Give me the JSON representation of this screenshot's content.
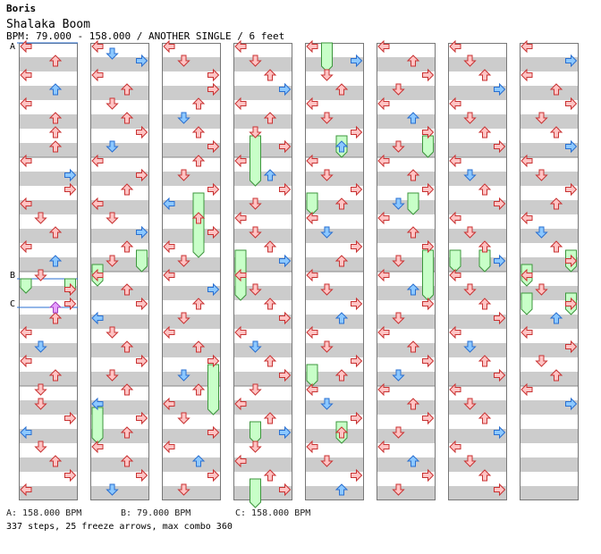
{
  "song": {
    "author": "Boris",
    "title": "Shalaka Boom",
    "info": "BPM: 79.000 - 158.000 / ANOTHER SINGLE / 6 feet"
  },
  "markers": [
    {
      "letter": "A",
      "column": 0,
      "beat": 0
    },
    {
      "letter": "B",
      "column": 0,
      "beat": 33
    },
    {
      "letter": "C",
      "column": 0,
      "beat": 37
    }
  ],
  "bpm_legend": [
    {
      "text": "A: 158.000 BPM"
    },
    {
      "text": "B: 79.000 BPM"
    },
    {
      "text": "C: 158.000 BPM"
    }
  ],
  "summary": "337 steps, 25 freeze arrows, max combo 360",
  "colors": {
    "red_fill": "#ffc4c4",
    "red_stroke": "#c83232",
    "blue_fill": "#8cc8ff",
    "blue_stroke": "#2a6fd0",
    "freeze_fill": "#c8ffc8",
    "freeze_stroke": "#3c963c",
    "stripe": "#cccccc",
    "marker": "#e8a0ff"
  },
  "chart_data": {
    "type": "step-chart",
    "columns": 8,
    "beats_per_column": 64,
    "lanes": [
      "left",
      "down",
      "up",
      "right"
    ],
    "notes": [
      [
        [
          0,
          0,
          "l"
        ],
        [
          0,
          2,
          "u"
        ],
        [
          0,
          4,
          "l"
        ],
        [
          0,
          6,
          "u"
        ],
        [
          0,
          8,
          "l"
        ],
        [
          0,
          10,
          "u"
        ],
        [
          0,
          12,
          "u"
        ],
        [
          0,
          14,
          "u"
        ],
        [
          0,
          16,
          "l"
        ],
        [
          0,
          18,
          "r"
        ],
        [
          0,
          20,
          "r"
        ],
        [
          0,
          22,
          "l"
        ],
        [
          0,
          24,
          "d"
        ],
        [
          0,
          26,
          "u"
        ],
        [
          0,
          28,
          "l"
        ],
        [
          0,
          30,
          "u"
        ],
        [
          0,
          32,
          "d"
        ],
        [
          0,
          34,
          "r"
        ],
        [
          0,
          36,
          "r"
        ],
        [
          0,
          38,
          "u"
        ],
        [
          0,
          40,
          "l"
        ],
        [
          0,
          42,
          "d"
        ],
        [
          0,
          44,
          "l"
        ],
        [
          0,
          46,
          "u"
        ],
        [
          0,
          48,
          "d"
        ],
        [
          0,
          50,
          "d"
        ],
        [
          0,
          52,
          "r"
        ],
        [
          0,
          54,
          "l"
        ],
        [
          0,
          56,
          "d"
        ],
        [
          0,
          58,
          "u"
        ],
        [
          0,
          60,
          "r"
        ],
        [
          0,
          62,
          "l"
        ]
      ],
      [
        [
          1,
          0,
          "l"
        ],
        [
          1,
          1,
          "d"
        ],
        [
          1,
          2,
          "r"
        ],
        [
          1,
          4,
          "l"
        ],
        [
          1,
          6,
          "u"
        ],
        [
          1,
          8,
          "d"
        ],
        [
          1,
          10,
          "u"
        ],
        [
          1,
          12,
          "r"
        ],
        [
          1,
          14,
          "d"
        ],
        [
          1,
          16,
          "l"
        ],
        [
          1,
          18,
          "r"
        ],
        [
          1,
          20,
          "u"
        ],
        [
          1,
          22,
          "l"
        ],
        [
          1,
          24,
          "d"
        ],
        [
          1,
          26,
          "r"
        ],
        [
          1,
          28,
          "u"
        ],
        [
          1,
          30,
          "d"
        ],
        [
          1,
          32,
          "l"
        ],
        [
          1,
          34,
          "u"
        ],
        [
          1,
          36,
          "r"
        ],
        [
          1,
          38,
          "l"
        ],
        [
          1,
          40,
          "d"
        ],
        [
          1,
          42,
          "u"
        ],
        [
          1,
          44,
          "r"
        ],
        [
          1,
          46,
          "d"
        ],
        [
          1,
          48,
          "u"
        ],
        [
          1,
          50,
          "l"
        ],
        [
          1,
          52,
          "r"
        ],
        [
          1,
          54,
          "u"
        ],
        [
          1,
          56,
          "l"
        ],
        [
          1,
          58,
          "u"
        ],
        [
          1,
          60,
          "r"
        ],
        [
          1,
          62,
          "d"
        ]
      ],
      [
        [
          2,
          0,
          "l"
        ],
        [
          2,
          2,
          "d"
        ],
        [
          2,
          4,
          "r"
        ],
        [
          2,
          6,
          "r"
        ],
        [
          2,
          8,
          "u"
        ],
        [
          2,
          10,
          "d"
        ],
        [
          2,
          12,
          "u"
        ],
        [
          2,
          14,
          "r"
        ],
        [
          2,
          16,
          "u"
        ],
        [
          2,
          18,
          "d"
        ],
        [
          2,
          20,
          "r"
        ],
        [
          2,
          22,
          "l"
        ],
        [
          2,
          24,
          "u"
        ],
        [
          2,
          26,
          "r"
        ],
        [
          2,
          28,
          "l"
        ],
        [
          2,
          30,
          "d"
        ],
        [
          2,
          32,
          "l"
        ],
        [
          2,
          34,
          "r"
        ],
        [
          2,
          36,
          "u"
        ],
        [
          2,
          38,
          "d"
        ],
        [
          2,
          40,
          "l"
        ],
        [
          2,
          42,
          "u"
        ],
        [
          2,
          44,
          "r"
        ],
        [
          2,
          46,
          "d"
        ],
        [
          2,
          48,
          "u"
        ],
        [
          2,
          50,
          "l"
        ],
        [
          2,
          52,
          "d"
        ],
        [
          2,
          54,
          "r"
        ],
        [
          2,
          56,
          "l"
        ],
        [
          2,
          58,
          "u"
        ],
        [
          2,
          60,
          "r"
        ],
        [
          2,
          62,
          "d"
        ]
      ],
      [
        [
          3,
          0,
          "l"
        ],
        [
          3,
          2,
          "d"
        ],
        [
          3,
          4,
          "u"
        ],
        [
          3,
          6,
          "r"
        ],
        [
          3,
          8,
          "l"
        ],
        [
          3,
          10,
          "u"
        ],
        [
          3,
          12,
          "d"
        ],
        [
          3,
          14,
          "r"
        ],
        [
          3,
          16,
          "l"
        ],
        [
          3,
          18,
          "u"
        ],
        [
          3,
          20,
          "r"
        ],
        [
          3,
          22,
          "d"
        ],
        [
          3,
          24,
          "l"
        ],
        [
          3,
          26,
          "d"
        ],
        [
          3,
          28,
          "u"
        ],
        [
          3,
          30,
          "r"
        ],
        [
          3,
          32,
          "l"
        ],
        [
          3,
          34,
          "d"
        ],
        [
          3,
          36,
          "u"
        ],
        [
          3,
          38,
          "r"
        ],
        [
          3,
          40,
          "l"
        ],
        [
          3,
          42,
          "d"
        ],
        [
          3,
          44,
          "u"
        ],
        [
          3,
          46,
          "r"
        ],
        [
          3,
          48,
          "d"
        ],
        [
          3,
          50,
          "l"
        ],
        [
          3,
          52,
          "u"
        ],
        [
          3,
          54,
          "r"
        ],
        [
          3,
          56,
          "d"
        ],
        [
          3,
          58,
          "l"
        ],
        [
          3,
          60,
          "u"
        ],
        [
          3,
          62,
          "r"
        ]
      ],
      [
        [
          4,
          0,
          "l"
        ],
        [
          4,
          2,
          "r"
        ],
        [
          4,
          4,
          "d"
        ],
        [
          4,
          6,
          "u"
        ],
        [
          4,
          8,
          "l"
        ],
        [
          4,
          10,
          "d"
        ],
        [
          4,
          12,
          "r"
        ],
        [
          4,
          14,
          "u"
        ],
        [
          4,
          16,
          "l"
        ],
        [
          4,
          18,
          "d"
        ],
        [
          4,
          20,
          "r"
        ],
        [
          4,
          22,
          "u"
        ],
        [
          4,
          24,
          "l"
        ],
        [
          4,
          26,
          "d"
        ],
        [
          4,
          28,
          "r"
        ],
        [
          4,
          30,
          "u"
        ],
        [
          4,
          32,
          "l"
        ],
        [
          4,
          34,
          "d"
        ],
        [
          4,
          36,
          "r"
        ],
        [
          4,
          38,
          "u"
        ],
        [
          4,
          40,
          "l"
        ],
        [
          4,
          42,
          "d"
        ],
        [
          4,
          44,
          "r"
        ],
        [
          4,
          46,
          "u"
        ],
        [
          4,
          48,
          "l"
        ],
        [
          4,
          50,
          "d"
        ],
        [
          4,
          52,
          "r"
        ],
        [
          4,
          54,
          "u"
        ],
        [
          4,
          56,
          "l"
        ],
        [
          4,
          58,
          "d"
        ],
        [
          4,
          60,
          "r"
        ],
        [
          4,
          62,
          "u"
        ]
      ],
      [
        [
          5,
          0,
          "l"
        ],
        [
          5,
          2,
          "u"
        ],
        [
          5,
          4,
          "r"
        ],
        [
          5,
          6,
          "d"
        ],
        [
          5,
          8,
          "l"
        ],
        [
          5,
          10,
          "u"
        ],
        [
          5,
          12,
          "r"
        ],
        [
          5,
          14,
          "d"
        ],
        [
          5,
          16,
          "l"
        ],
        [
          5,
          18,
          "u"
        ],
        [
          5,
          20,
          "r"
        ],
        [
          5,
          22,
          "d"
        ],
        [
          5,
          24,
          "l"
        ],
        [
          5,
          26,
          "u"
        ],
        [
          5,
          28,
          "r"
        ],
        [
          5,
          30,
          "d"
        ],
        [
          5,
          32,
          "l"
        ],
        [
          5,
          34,
          "u"
        ],
        [
          5,
          36,
          "r"
        ],
        [
          5,
          38,
          "d"
        ],
        [
          5,
          40,
          "l"
        ],
        [
          5,
          42,
          "u"
        ],
        [
          5,
          44,
          "r"
        ],
        [
          5,
          46,
          "d"
        ],
        [
          5,
          48,
          "l"
        ],
        [
          5,
          50,
          "u"
        ],
        [
          5,
          52,
          "r"
        ],
        [
          5,
          54,
          "d"
        ],
        [
          5,
          56,
          "l"
        ],
        [
          5,
          58,
          "u"
        ],
        [
          5,
          60,
          "r"
        ],
        [
          5,
          62,
          "d"
        ]
      ],
      [
        [
          6,
          0,
          "l"
        ],
        [
          6,
          2,
          "d"
        ],
        [
          6,
          4,
          "u"
        ],
        [
          6,
          6,
          "r"
        ],
        [
          6,
          8,
          "l"
        ],
        [
          6,
          10,
          "d"
        ],
        [
          6,
          12,
          "u"
        ],
        [
          6,
          14,
          "r"
        ],
        [
          6,
          16,
          "l"
        ],
        [
          6,
          18,
          "d"
        ],
        [
          6,
          20,
          "u"
        ],
        [
          6,
          22,
          "r"
        ],
        [
          6,
          24,
          "l"
        ],
        [
          6,
          26,
          "d"
        ],
        [
          6,
          28,
          "u"
        ],
        [
          6,
          30,
          "r"
        ],
        [
          6,
          32,
          "l"
        ],
        [
          6,
          34,
          "d"
        ],
        [
          6,
          36,
          "u"
        ],
        [
          6,
          38,
          "r"
        ],
        [
          6,
          40,
          "l"
        ],
        [
          6,
          42,
          "d"
        ],
        [
          6,
          44,
          "u"
        ],
        [
          6,
          46,
          "r"
        ],
        [
          6,
          48,
          "l"
        ],
        [
          6,
          50,
          "d"
        ],
        [
          6,
          52,
          "u"
        ],
        [
          6,
          54,
          "r"
        ],
        [
          6,
          56,
          "l"
        ],
        [
          6,
          58,
          "d"
        ],
        [
          6,
          60,
          "u"
        ],
        [
          6,
          62,
          "r"
        ]
      ],
      [
        [
          7,
          0,
          "l"
        ],
        [
          7,
          2,
          "r"
        ],
        [
          7,
          4,
          "l"
        ],
        [
          7,
          6,
          "u"
        ],
        [
          7,
          8,
          "r"
        ],
        [
          7,
          10,
          "d"
        ],
        [
          7,
          12,
          "u"
        ],
        [
          7,
          14,
          "r"
        ],
        [
          7,
          16,
          "l"
        ],
        [
          7,
          18,
          "d"
        ],
        [
          7,
          20,
          "r"
        ],
        [
          7,
          22,
          "u"
        ],
        [
          7,
          24,
          "l"
        ],
        [
          7,
          26,
          "d"
        ],
        [
          7,
          28,
          "u"
        ],
        [
          7,
          30,
          "r"
        ],
        [
          7,
          32,
          "l"
        ],
        [
          7,
          34,
          "d"
        ],
        [
          7,
          36,
          "r"
        ],
        [
          7,
          38,
          "u"
        ],
        [
          7,
          40,
          "l"
        ],
        [
          7,
          42,
          "r"
        ],
        [
          7,
          44,
          "d"
        ],
        [
          7,
          46,
          "u"
        ],
        [
          7,
          48,
          "l"
        ],
        [
          7,
          50,
          "r"
        ]
      ]
    ],
    "freezes": [
      [
        0,
        33,
        2,
        "l"
      ],
      [
        0,
        33,
        2,
        "r"
      ],
      [
        1,
        31,
        3,
        "l"
      ],
      [
        1,
        29,
        3,
        "r"
      ],
      [
        1,
        51,
        5,
        "l"
      ],
      [
        2,
        21,
        9,
        "u"
      ],
      [
        2,
        45,
        7,
        "r"
      ],
      [
        3,
        13,
        7,
        "d"
      ],
      [
        3,
        29,
        7,
        "l"
      ],
      [
        3,
        53,
        3,
        "d"
      ],
      [
        3,
        61,
        4,
        "d"
      ],
      [
        4,
        0,
        4,
        "d"
      ],
      [
        4,
        13,
        3,
        "u"
      ],
      [
        4,
        21,
        3,
        "l"
      ],
      [
        4,
        45,
        3,
        "l"
      ],
      [
        4,
        53,
        3,
        "u"
      ],
      [
        5,
        13,
        3,
        "r"
      ],
      [
        5,
        21,
        3,
        "u"
      ],
      [
        5,
        29,
        7,
        "r"
      ],
      [
        6,
        29,
        3,
        "l"
      ],
      [
        6,
        29,
        3,
        "u"
      ],
      [
        7,
        29,
        3,
        "r"
      ],
      [
        7,
        31,
        3,
        "l"
      ],
      [
        7,
        35,
        3,
        "l"
      ],
      [
        7,
        35,
        3,
        "r"
      ]
    ]
  }
}
